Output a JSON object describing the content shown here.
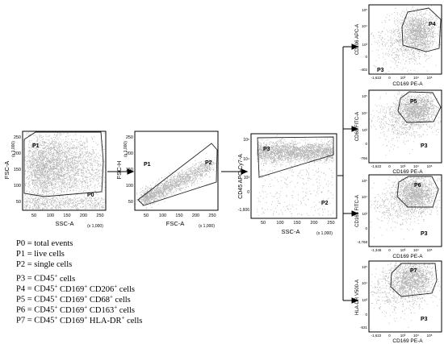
{
  "plots": [
    {
      "id": "p0",
      "y_title": "FSC-A",
      "x_title": "SSC-A",
      "x_mult": "(x 1,000)",
      "y_mult": "(x 1,000)",
      "x_ticks": [
        "50",
        "100",
        "150",
        "200",
        "250"
      ],
      "y_ticks": [
        "50",
        "100",
        "150",
        "200",
        "250"
      ],
      "gates": [
        "P1",
        "P0"
      ]
    },
    {
      "id": "p1",
      "y_title": "FSC-H",
      "x_title": "FSC-A",
      "x_mult": "(x 1,000)",
      "y_mult": "(x 1,000)",
      "x_ticks": [
        "50",
        "100",
        "150",
        "200",
        "250"
      ],
      "y_ticks": [
        "50",
        "100",
        "150",
        "200",
        "250"
      ],
      "gates": [
        "P1",
        "P2"
      ]
    },
    {
      "id": "p2",
      "y_title": "CD45 APC-Cy7-A",
      "x_title": "SSC-A",
      "x_mult": "(x 1,000)",
      "y_ticks": [
        "10⁵",
        "10⁴",
        "10³",
        "0",
        "-1,606"
      ],
      "x_ticks": [
        "50",
        "100",
        "150",
        "200",
        "250"
      ],
      "gates": [
        "P3",
        "P2"
      ]
    },
    {
      "id": "p3",
      "y_title": "CD206 APC-A",
      "x_title": "CD169 PE-A",
      "y_ticks": [
        "10⁵",
        "10⁴",
        "10³",
        "0",
        "-402"
      ],
      "x_ticks": [
        "-1,622",
        "0",
        "10³",
        "10⁴",
        "10⁵"
      ],
      "gates": [
        "P4",
        "P3"
      ]
    },
    {
      "id": "p4",
      "y_title": "CD68 FITC-A",
      "x_title": "CD169 PE-A",
      "y_ticks": [
        "10⁵",
        "10⁴",
        "10³",
        "0",
        "-766"
      ],
      "x_ticks": [
        "-1,622",
        "0",
        "10³",
        "10⁴",
        "10⁵"
      ],
      "gates": [
        "P5",
        "P3"
      ]
    },
    {
      "id": "p5",
      "y_title": "CD163 FITC-A",
      "x_title": "CD169 PE-A",
      "y_ticks": [
        "10⁵",
        "10⁴",
        "10³",
        "0",
        "-4,768"
      ],
      "x_ticks": [
        "-1,348",
        "0",
        "10³",
        "10⁴",
        "10⁵"
      ],
      "gates": [
        "P6",
        "P3"
      ]
    },
    {
      "id": "p6",
      "y_title": "HLA-DR V500-A",
      "x_title": "CD169 PE-A",
      "y_ticks": [
        "10⁵",
        "10⁴",
        "10³",
        "0",
        "-531"
      ],
      "x_ticks": [
        "-1,622",
        "0",
        "10³",
        "10⁴",
        "10⁵"
      ],
      "gates": [
        "P7",
        "P3"
      ]
    }
  ],
  "legend": [
    {
      "base": "P0 = total events",
      "parts": []
    },
    {
      "base": "P1 = live cells",
      "parts": []
    },
    {
      "base": "P2 = single cells",
      "parts": []
    },
    {
      "base": "P3 = CD45",
      "parts": [
        {
          "sup": "+"
        },
        {
          "t": " cells"
        }
      ]
    },
    {
      "base": "P4 = CD45",
      "parts": [
        {
          "sup": "+"
        },
        {
          "t": " CD169"
        },
        {
          "sup": "+"
        },
        {
          "t": " CD206"
        },
        {
          "sup": "+"
        },
        {
          "t": " cells"
        }
      ]
    },
    {
      "base": "P5 = CD45",
      "parts": [
        {
          "sup": "+"
        },
        {
          "t": " CD169"
        },
        {
          "sup": "+"
        },
        {
          "t": " CD68"
        },
        {
          "sup": "+"
        },
        {
          "t": "  cells"
        }
      ]
    },
    {
      "base": "P6 = CD45",
      "parts": [
        {
          "sup": "+"
        },
        {
          "t": " CD169"
        },
        {
          "sup": "+"
        },
        {
          "t": " CD163"
        },
        {
          "sup": "+"
        },
        {
          "t": "  cells"
        }
      ]
    },
    {
      "base": "P7 = CD45",
      "parts": [
        {
          "sup": "+"
        },
        {
          "t": " CD169"
        },
        {
          "sup": "+"
        },
        {
          "t": " HLA-DR"
        },
        {
          "sup": "+"
        },
        {
          "t": " cells"
        }
      ]
    }
  ],
  "colors": {
    "dots": "#b3b3b3",
    "gate": "#222222",
    "frame": "#000000",
    "arrow": "#000000"
  }
}
